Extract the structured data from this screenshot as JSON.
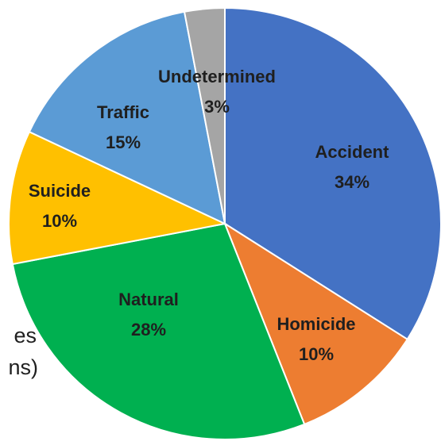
{
  "chart_data": {
    "type": "pie",
    "categories": [
      "Accident",
      "Homicide",
      "Natural",
      "Suicide",
      "Traffic",
      "Undetermined"
    ],
    "values": [
      34,
      10,
      28,
      10,
      15,
      3
    ],
    "value_labels": [
      "34%",
      "10%",
      "28%",
      "10%",
      "15%",
      "3%"
    ],
    "colors": [
      "#4472c4",
      "#ed7d31",
      "#00b050",
      "#ffc000",
      "#5b9bd5",
      "#a5a5a5"
    ],
    "annotations": [
      "es",
      "ns)"
    ]
  }
}
